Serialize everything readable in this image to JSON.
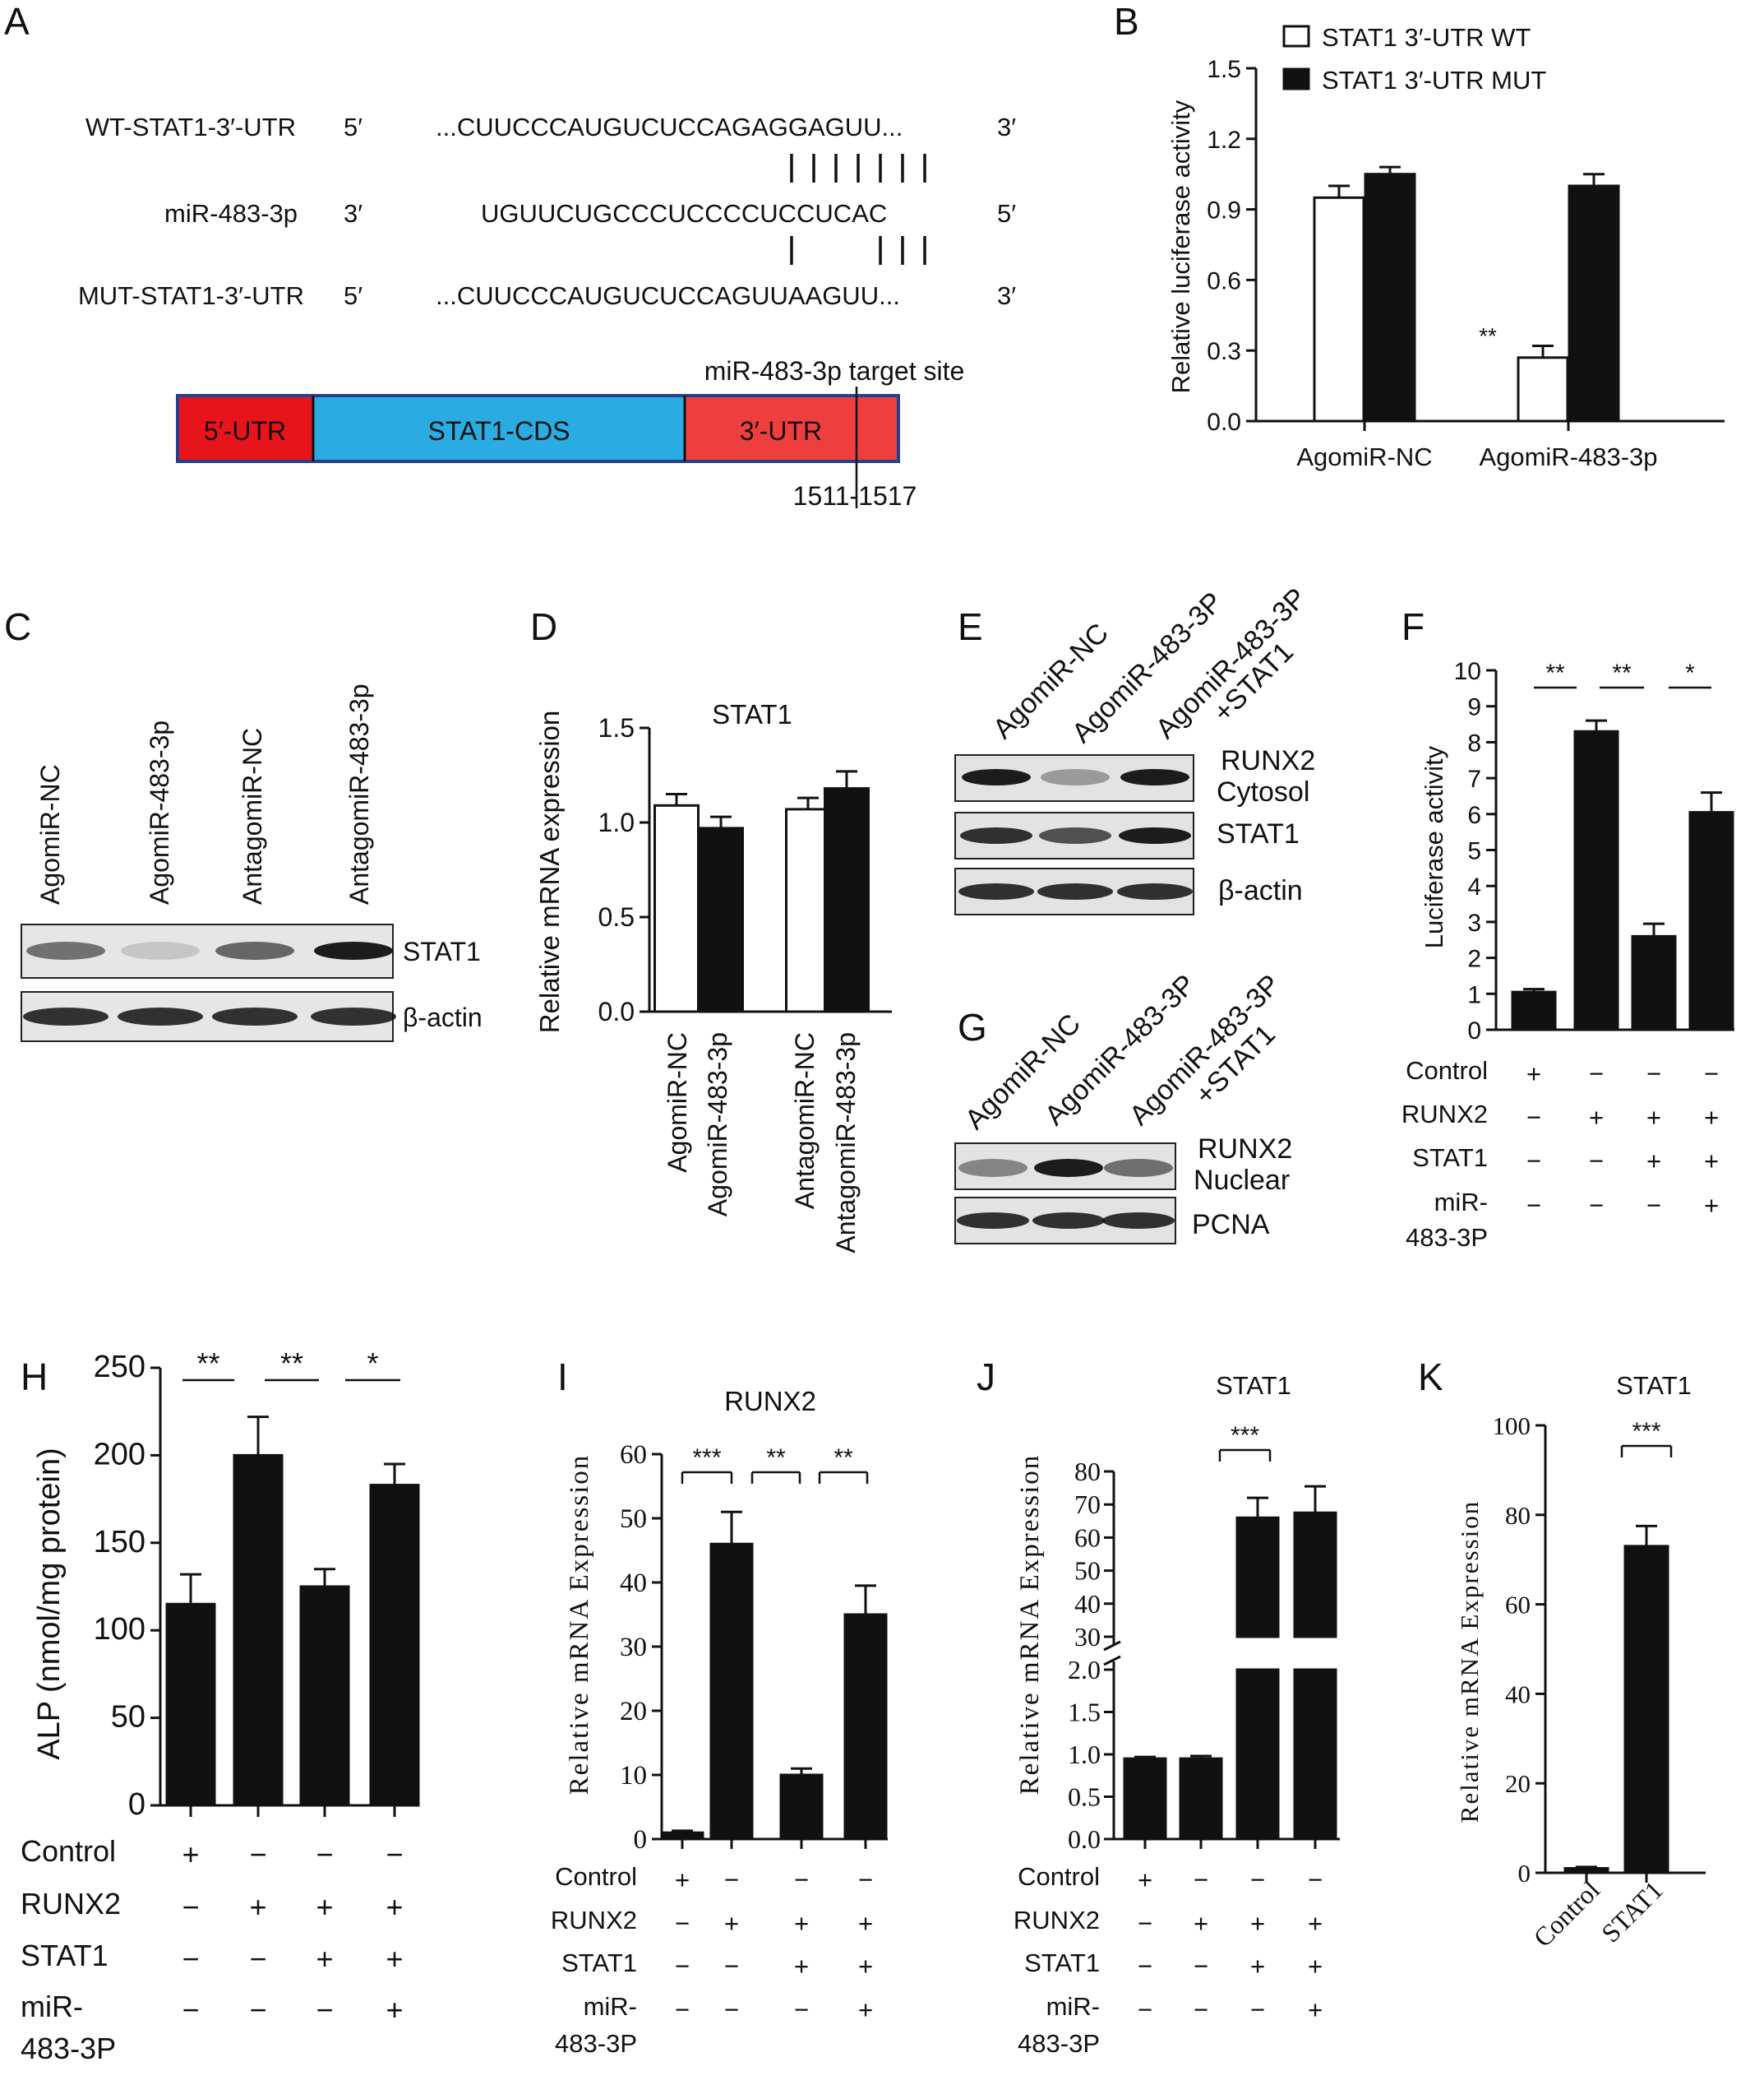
{
  "panels": {
    "A": {
      "letter": "A",
      "rows": [
        {
          "label": "WT-STAT1-3′-UTR",
          "end5": "5′",
          "seq": "...CUUCCCAUGUCUCCAGAGGAGUU...",
          "end3": "3′"
        },
        {
          "label": "miR-483-3p",
          "end5": "3′",
          "seq": "UGUUCUGCCCUCCCCUCCUCAC",
          "end3": "5′"
        },
        {
          "label": "MUT-STAT1-3′-UTR",
          "end5": "5′",
          "seq": "...CUUCCCAUGUCUCCAGUUAAGUU...",
          "end3": "3′"
        }
      ],
      "gene": {
        "utr5": "5′-UTR",
        "cds": "STAT1-CDS",
        "utr3": "3′-UTR",
        "site_label": "miR-483-3p  target site",
        "site_pos": "1511-1517"
      },
      "colors": {
        "utr5": "#e8141b",
        "cds": "#2aabe2",
        "utr3": "#ef3e3e",
        "border": "#27408b"
      }
    },
    "C": {
      "letter": "C",
      "lanes": [
        "AgomiR-NC",
        "AgomiR-483-3p",
        "AntagomiR-NC",
        "AntagomiR-483-3p"
      ],
      "rows": [
        "STAT1",
        "β-actin"
      ]
    },
    "E": {
      "letter": "E",
      "lanes": [
        "AgomiR-NC",
        "AgomiR-483-3P",
        "AgomiR-483-3P",
        "+STAT1"
      ],
      "rows": [
        "RUNX2",
        "Cytosol",
        "STAT1",
        "β-actin"
      ]
    },
    "G": {
      "letter": "G",
      "lanes": [
        "AgomiR-NC",
        "AgomiR-483-3P",
        "AgomiR-483-3P",
        "+STAT1"
      ],
      "rows": [
        "RUNX2",
        "Nuclear",
        "PCNA"
      ]
    }
  },
  "chart_data": [
    {
      "panel": "B",
      "type": "bar",
      "categories": [
        "AgomiR-NC",
        "AgomiR-483-3p"
      ],
      "series": [
        {
          "name": "STAT1 3′-UTR WT",
          "values": [
            0.95,
            0.27
          ],
          "errors": [
            0.05,
            0.05
          ],
          "fill": "white"
        },
        {
          "name": "STAT1 3′-UTR MUT",
          "values": [
            1.05,
            1.0
          ],
          "errors": [
            0.03,
            0.05
          ],
          "fill": "black"
        }
      ],
      "ylabel": "Relative luciferase activity",
      "ylim": [
        0,
        1.5
      ],
      "yticks": [
        "0.0",
        "0.3",
        "0.6",
        "0.9",
        "1.2",
        "1.5"
      ],
      "annotations": [
        "**"
      ],
      "legend": "top"
    },
    {
      "panel": "D",
      "type": "bar",
      "title": "STAT1",
      "categories": [
        "AgomiR-NC",
        "AgomiR-483-3p",
        "AntagomiR-NC",
        "AntagomiR-483-3p"
      ],
      "values": [
        1.09,
        0.97,
        1.07,
        1.18
      ],
      "errors": [
        0.06,
        0.06,
        0.06,
        0.09
      ],
      "ylabel": "Relative mRNA expression",
      "ylim": [
        0,
        1.5
      ],
      "yticks": [
        "0.0",
        "0.5",
        "1.0",
        "1.5"
      ]
    },
    {
      "panel": "F",
      "type": "bar",
      "categories": [
        "Control",
        "RUNX2",
        "RUNX2+STAT1",
        "RUNX2+STAT1+miR-483-3P"
      ],
      "values": [
        1.05,
        8.3,
        2.6,
        6.05
      ],
      "errors": [
        0.08,
        0.3,
        0.35,
        0.55
      ],
      "ylabel": "Luciferase activity",
      "ylim": [
        0,
        10
      ],
      "yticks": [
        "0",
        "1",
        "2",
        "3",
        "4",
        "5",
        "6",
        "7",
        "8",
        "9",
        "10"
      ],
      "significance": [
        "**",
        "**",
        "*"
      ],
      "design": {
        "rows": [
          "Control",
          "RUNX2",
          "STAT1",
          "miR-",
          "483-3P"
        ],
        "signs": [
          [
            "+",
            "−",
            "−",
            "−"
          ],
          [
            "−",
            "+",
            "+",
            "+"
          ],
          [
            "−",
            "−",
            "+",
            "+"
          ],
          [
            "−",
            "−",
            "−",
            "+"
          ]
        ]
      }
    },
    {
      "panel": "H",
      "type": "bar",
      "categories": [
        "Control",
        "RUNX2",
        "RUNX2+STAT1",
        "RUNX2+STAT1+miR-483-3P"
      ],
      "values": [
        115,
        200,
        125,
        183
      ],
      "errors": [
        17,
        22,
        10,
        12
      ],
      "ylabel": "ALP (nmol/mg protein)",
      "ylim": [
        0,
        250
      ],
      "yticks": [
        "0",
        "50",
        "100",
        "150",
        "200",
        "250"
      ],
      "significance": [
        "**",
        "**",
        "*"
      ],
      "design": {
        "rows": [
          "Control",
          "RUNX2",
          "STAT1",
          "miR-",
          "483-3P"
        ],
        "signs": [
          [
            "+",
            "−",
            "−",
            "−"
          ],
          [
            "−",
            "+",
            "+",
            "+"
          ],
          [
            "−",
            "−",
            "+",
            "+"
          ],
          [
            "−",
            "−",
            "−",
            "+"
          ]
        ]
      }
    },
    {
      "panel": "I",
      "type": "bar",
      "title": "RUNX2",
      "categories": [
        "Control",
        "RUNX2",
        "RUNX2+STAT1",
        "RUNX2+STAT1+miR-483-3P"
      ],
      "values": [
        1,
        46,
        10,
        35
      ],
      "errors": [
        0.3,
        5,
        1,
        4.5
      ],
      "ylabel": "Relative mRNA Expression",
      "ylim": [
        0,
        60
      ],
      "yticks": [
        "0",
        "10",
        "20",
        "30",
        "40",
        "50",
        "60"
      ],
      "significance": [
        "***",
        "**",
        "**"
      ],
      "design": {
        "rows": [
          "Control",
          "RUNX2",
          "STAT1",
          "miR-",
          "483-3P"
        ],
        "signs": [
          [
            "+",
            "−",
            "−",
            "−"
          ],
          [
            "−",
            "+",
            "+",
            "+"
          ],
          [
            "−",
            "−",
            "+",
            "+"
          ],
          [
            "−",
            "−",
            "−",
            "+"
          ]
        ]
      }
    },
    {
      "panel": "J",
      "type": "bar",
      "title": "STAT1",
      "categories": [
        "Control",
        "RUNX2",
        "RUNX2+STAT1",
        "RUNX2+STAT1+miR-483-3P"
      ],
      "values": [
        0.95,
        0.95,
        66,
        67.5
      ],
      "errors": [
        0.02,
        0.03,
        6,
        8
      ],
      "ylabel": "Relative mRNA Expression",
      "axis_break": true,
      "yticks_low": [
        "0.0",
        "0.5",
        "1.0",
        "1.5",
        "2.0"
      ],
      "yticks_high": [
        "30",
        "40",
        "50",
        "60",
        "70",
        "80"
      ],
      "significance": [
        "***"
      ],
      "design": {
        "rows": [
          "Control",
          "RUNX2",
          "STAT1",
          "miR-",
          "483-3P"
        ],
        "signs": [
          [
            "+",
            "−",
            "−",
            "−"
          ],
          [
            "−",
            "+",
            "+",
            "+"
          ],
          [
            "−",
            "−",
            "+",
            "+"
          ],
          [
            "−",
            "−",
            "−",
            "+"
          ]
        ]
      }
    },
    {
      "panel": "K",
      "type": "bar",
      "title": "STAT1",
      "categories": [
        "Control",
        "STAT1"
      ],
      "values": [
        1,
        73
      ],
      "errors": [
        0.3,
        4.5
      ],
      "ylabel": "Relative mRNA Expression",
      "ylim": [
        0,
        100
      ],
      "yticks": [
        "0",
        "20",
        "40",
        "60",
        "80",
        "100"
      ],
      "significance": [
        "***"
      ]
    }
  ]
}
